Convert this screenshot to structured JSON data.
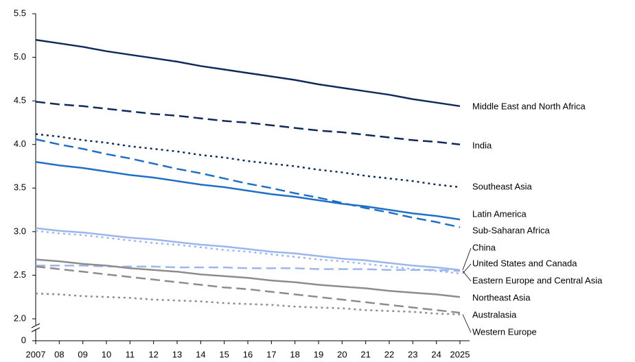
{
  "chart_data": {
    "type": "line",
    "categories": [
      "2007",
      "08",
      "09",
      "10",
      "11",
      "12",
      "13",
      "14",
      "15",
      "16",
      "17",
      "18",
      "19",
      "20",
      "21",
      "22",
      "23",
      "24",
      "2025"
    ],
    "ylim": [
      0,
      5.5
    ],
    "y_break": [
      0,
      2
    ],
    "yticks": [
      0,
      {
        "value": 2,
        "label": "2.0"
      },
      2.5,
      {
        "value": 3,
        "label": "3.0"
      },
      3.5,
      {
        "value": 4,
        "label": "4.0"
      },
      4.5,
      {
        "value": 5,
        "label": "5.0"
      },
      5.5
    ],
    "grid": false,
    "series": [
      {
        "name": "Middle East and North Africa",
        "color": "#0d2a5a",
        "dash": "solid",
        "values": [
          5.2,
          5.16,
          5.12,
          5.07,
          5.03,
          4.99,
          4.95,
          4.9,
          4.86,
          4.82,
          4.78,
          4.74,
          4.69,
          4.65,
          4.61,
          4.57,
          4.52,
          4.48,
          4.44
        ]
      },
      {
        "name": "India",
        "color": "#0d2a5a",
        "dash": "dashed",
        "values": [
          4.49,
          4.46,
          4.44,
          4.41,
          4.38,
          4.35,
          4.33,
          4.3,
          4.27,
          4.25,
          4.22,
          4.19,
          4.16,
          4.14,
          4.11,
          4.08,
          4.05,
          4.03,
          4.0
        ]
      },
      {
        "name": "Southeast Asia",
        "color": "#0d2a5a",
        "dash": "dotted",
        "values": [
          4.12,
          4.09,
          4.05,
          4.02,
          3.98,
          3.95,
          3.92,
          3.88,
          3.85,
          3.81,
          3.78,
          3.75,
          3.71,
          3.68,
          3.64,
          3.61,
          3.58,
          3.54,
          3.51
        ]
      },
      {
        "name": "Latin America",
        "color": "#1f6fc8",
        "dash": "solid",
        "values": [
          3.8,
          3.76,
          3.73,
          3.69,
          3.65,
          3.62,
          3.58,
          3.54,
          3.51,
          3.47,
          3.43,
          3.4,
          3.36,
          3.32,
          3.29,
          3.25,
          3.21,
          3.18,
          3.14
        ]
      },
      {
        "name": "Sub-Saharan Africa",
        "color": "#1f6fc8",
        "dash": "dashed",
        "values": [
          4.06,
          4.0,
          3.95,
          3.89,
          3.84,
          3.78,
          3.72,
          3.67,
          3.61,
          3.55,
          3.5,
          3.44,
          3.39,
          3.33,
          3.27,
          3.22,
          3.16,
          3.11,
          3.05
        ]
      },
      {
        "name": "China",
        "color": "#9bb5f0",
        "dash": "solid",
        "values": [
          3.04,
          3.01,
          2.99,
          2.96,
          2.93,
          2.91,
          2.88,
          2.85,
          2.83,
          2.8,
          2.77,
          2.75,
          2.72,
          2.69,
          2.67,
          2.64,
          2.61,
          2.59,
          2.56
        ]
      },
      {
        "name": "United States and Canada",
        "color": "#9bb5f0",
        "dash": "dotted",
        "values": [
          3.01,
          2.98,
          2.96,
          2.93,
          2.9,
          2.87,
          2.85,
          2.82,
          2.79,
          2.77,
          2.74,
          2.71,
          2.68,
          2.66,
          2.63,
          2.6,
          2.57,
          2.55,
          2.52
        ]
      },
      {
        "name": "Eastern Europe and Central Asia",
        "color": "#9bb5f0",
        "dash": "dashed",
        "values": [
          2.61,
          2.61,
          2.61,
          2.6,
          2.6,
          2.6,
          2.59,
          2.59,
          2.59,
          2.58,
          2.58,
          2.58,
          2.57,
          2.57,
          2.57,
          2.56,
          2.56,
          2.56,
          2.55
        ]
      },
      {
        "name": "Northeast Asia",
        "color": "#8c8c8c",
        "dash": "solid",
        "values": [
          2.68,
          2.66,
          2.63,
          2.61,
          2.58,
          2.56,
          2.54,
          2.51,
          2.49,
          2.47,
          2.44,
          2.42,
          2.39,
          2.37,
          2.35,
          2.32,
          2.3,
          2.28,
          2.25
        ]
      },
      {
        "name": "Australasia",
        "color": "#8c8c8c",
        "dash": "dashed",
        "values": [
          2.6,
          2.57,
          2.54,
          2.51,
          2.48,
          2.45,
          2.42,
          2.39,
          2.36,
          2.34,
          2.31,
          2.28,
          2.25,
          2.22,
          2.19,
          2.16,
          2.13,
          2.1,
          2.07
        ]
      },
      {
        "name": "Western Europe",
        "color": "#8c8c8c",
        "dash": "dotted",
        "values": [
          2.29,
          2.28,
          2.26,
          2.25,
          2.24,
          2.22,
          2.21,
          2.2,
          2.18,
          2.17,
          2.16,
          2.14,
          2.13,
          2.12,
          2.1,
          2.09,
          2.08,
          2.06,
          2.05
        ]
      }
    ]
  }
}
